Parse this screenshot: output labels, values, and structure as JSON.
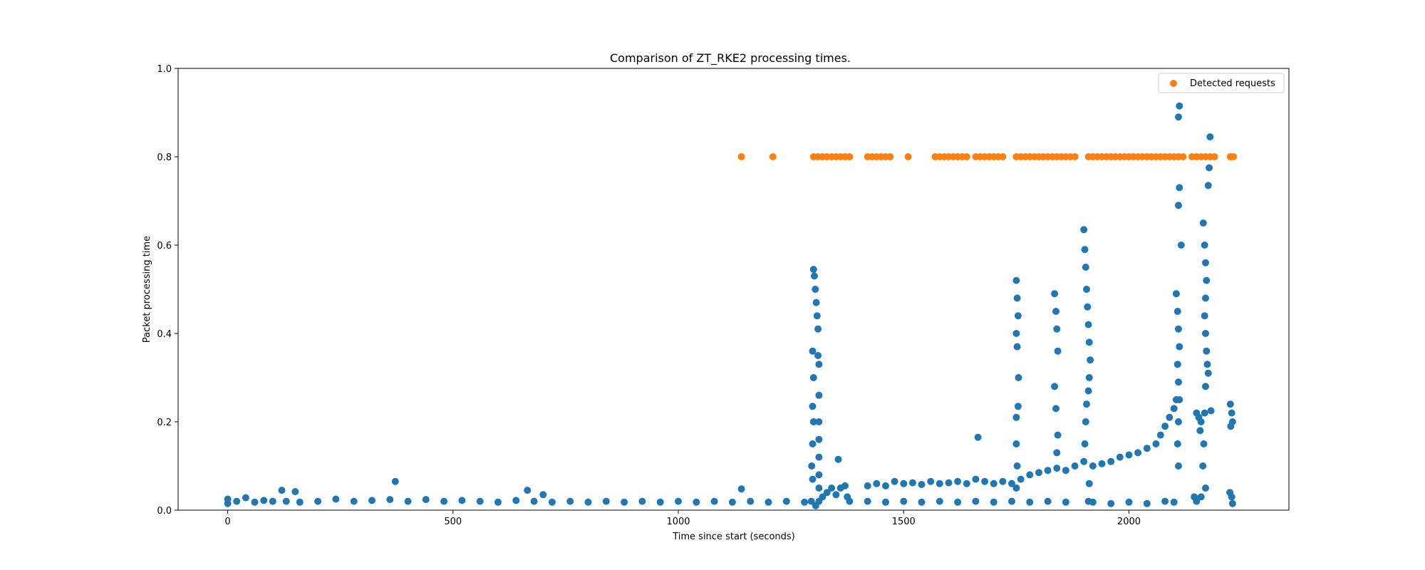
{
  "chart_data": {
    "type": "scatter",
    "title": "Comparison of ZT_RKE2 processing times.",
    "xlabel": "Time since start (seconds)",
    "ylabel": "Packet processing time",
    "xlim": [
      -110,
      2355
    ],
    "ylim": [
      0,
      1.0
    ],
    "xticks": [
      0,
      500,
      1000,
      1500,
      2000
    ],
    "yticks": [
      0.0,
      0.2,
      0.4,
      0.6,
      0.8,
      1.0
    ],
    "xtick_labels": [
      "0",
      "500",
      "1000",
      "1500",
      "2000"
    ],
    "ytick_labels": [
      "0.0",
      "0.2",
      "0.4",
      "0.6",
      "0.8",
      "1.0"
    ],
    "grid": false,
    "legend": {
      "position": "top-right",
      "entries": [
        "Detected requests"
      ]
    },
    "colors": {
      "processing": "#1f77b4",
      "detected": "#ff7f0e"
    },
    "series": [
      {
        "key": "processing",
        "points": [
          [
            0,
            0.015
          ],
          [
            0,
            0.025
          ],
          [
            20,
            0.02
          ],
          [
            40,
            0.028
          ],
          [
            60,
            0.018
          ],
          [
            80,
            0.022
          ],
          [
            100,
            0.02
          ],
          [
            120,
            0.045
          ],
          [
            130,
            0.02
          ],
          [
            150,
            0.042
          ],
          [
            160,
            0.018
          ],
          [
            200,
            0.02
          ],
          [
            240,
            0.025
          ],
          [
            280,
            0.02
          ],
          [
            320,
            0.022
          ],
          [
            360,
            0.024
          ],
          [
            372,
            0.065
          ],
          [
            400,
            0.02
          ],
          [
            440,
            0.024
          ],
          [
            480,
            0.02
          ],
          [
            520,
            0.022
          ],
          [
            560,
            0.02
          ],
          [
            600,
            0.018
          ],
          [
            640,
            0.022
          ],
          [
            665,
            0.045
          ],
          [
            680,
            0.02
          ],
          [
            700,
            0.035
          ],
          [
            720,
            0.018
          ],
          [
            760,
            0.02
          ],
          [
            800,
            0.018
          ],
          [
            840,
            0.02
          ],
          [
            880,
            0.018
          ],
          [
            920,
            0.02
          ],
          [
            960,
            0.018
          ],
          [
            1000,
            0.02
          ],
          [
            1040,
            0.018
          ],
          [
            1080,
            0.02
          ],
          [
            1120,
            0.018
          ],
          [
            1140,
            0.048
          ],
          [
            1160,
            0.02
          ],
          [
            1200,
            0.018
          ],
          [
            1240,
            0.02
          ],
          [
            1280,
            0.018
          ],
          [
            1295,
            0.02
          ],
          [
            1300,
            0.545
          ],
          [
            1302,
            0.53
          ],
          [
            1304,
            0.5
          ],
          [
            1306,
            0.47
          ],
          [
            1308,
            0.44
          ],
          [
            1310,
            0.41
          ],
          [
            1298,
            0.36
          ],
          [
            1300,
            0.3
          ],
          [
            1298,
            0.235
          ],
          [
            1300,
            0.2
          ],
          [
            1298,
            0.15
          ],
          [
            1296,
            0.1
          ],
          [
            1298,
            0.07
          ],
          [
            1310,
            0.35
          ],
          [
            1312,
            0.33
          ],
          [
            1312,
            0.26
          ],
          [
            1312,
            0.2
          ],
          [
            1312,
            0.16
          ],
          [
            1312,
            0.12
          ],
          [
            1312,
            0.08
          ],
          [
            1312,
            0.05
          ],
          [
            1312,
            0.02
          ],
          [
            1305,
            0.01
          ],
          [
            1320,
            0.03
          ],
          [
            1330,
            0.04
          ],
          [
            1340,
            0.05
          ],
          [
            1350,
            0.035
          ],
          [
            1355,
            0.115
          ],
          [
            1360,
            0.05
          ],
          [
            1370,
            0.055
          ],
          [
            1375,
            0.03
          ],
          [
            1380,
            0.02
          ],
          [
            1420,
            0.055
          ],
          [
            1440,
            0.06
          ],
          [
            1460,
            0.055
          ],
          [
            1480,
            0.065
          ],
          [
            1500,
            0.06
          ],
          [
            1520,
            0.062
          ],
          [
            1540,
            0.058
          ],
          [
            1560,
            0.065
          ],
          [
            1580,
            0.06
          ],
          [
            1600,
            0.062
          ],
          [
            1620,
            0.065
          ],
          [
            1640,
            0.06
          ],
          [
            1660,
            0.07
          ],
          [
            1665,
            0.165
          ],
          [
            1680,
            0.065
          ],
          [
            1700,
            0.06
          ],
          [
            1720,
            0.065
          ],
          [
            1740,
            0.06
          ],
          [
            1420,
            0.02
          ],
          [
            1460,
            0.018
          ],
          [
            1500,
            0.02
          ],
          [
            1540,
            0.018
          ],
          [
            1580,
            0.02
          ],
          [
            1620,
            0.018
          ],
          [
            1660,
            0.02
          ],
          [
            1700,
            0.018
          ],
          [
            1740,
            0.02
          ],
          [
            1780,
            0.018
          ],
          [
            1820,
            0.02
          ],
          [
            1860,
            0.018
          ],
          [
            1750,
            0.52
          ],
          [
            1752,
            0.48
          ],
          [
            1754,
            0.44
          ],
          [
            1750,
            0.4
          ],
          [
            1752,
            0.37
          ],
          [
            1755,
            0.3
          ],
          [
            1750,
            0.21
          ],
          [
            1754,
            0.235
          ],
          [
            1750,
            0.15
          ],
          [
            1752,
            0.1
          ],
          [
            1750,
            0.05
          ],
          [
            1760,
            0.07
          ],
          [
            1780,
            0.08
          ],
          [
            1800,
            0.085
          ],
          [
            1820,
            0.09
          ],
          [
            1840,
            0.095
          ],
          [
            1860,
            0.09
          ],
          [
            1880,
            0.1
          ],
          [
            1835,
            0.49
          ],
          [
            1838,
            0.45
          ],
          [
            1840,
            0.41
          ],
          [
            1842,
            0.36
          ],
          [
            1835,
            0.28
          ],
          [
            1838,
            0.23
          ],
          [
            1842,
            0.17
          ],
          [
            1840,
            0.13
          ],
          [
            1900,
            0.635
          ],
          [
            1902,
            0.59
          ],
          [
            1904,
            0.55
          ],
          [
            1906,
            0.5
          ],
          [
            1908,
            0.46
          ],
          [
            1910,
            0.42
          ],
          [
            1912,
            0.38
          ],
          [
            1914,
            0.34
          ],
          [
            1912,
            0.3
          ],
          [
            1910,
            0.27
          ],
          [
            1906,
            0.24
          ],
          [
            1904,
            0.2
          ],
          [
            1902,
            0.15
          ],
          [
            1900,
            0.11
          ],
          [
            1912,
            0.06
          ],
          [
            1910,
            0.02
          ],
          [
            1920,
            0.1
          ],
          [
            1940,
            0.105
          ],
          [
            1960,
            0.11
          ],
          [
            1980,
            0.12
          ],
          [
            2000,
            0.125
          ],
          [
            2020,
            0.13
          ],
          [
            2040,
            0.14
          ],
          [
            2060,
            0.15
          ],
          [
            2070,
            0.17
          ],
          [
            2080,
            0.19
          ],
          [
            2090,
            0.21
          ],
          [
            2100,
            0.23
          ],
          [
            2105,
            0.25
          ],
          [
            1920,
            0.018
          ],
          [
            1960,
            0.015
          ],
          [
            2000,
            0.018
          ],
          [
            2040,
            0.015
          ],
          [
            2080,
            0.02
          ],
          [
            2100,
            0.018
          ],
          [
            2105,
            0.49
          ],
          [
            2108,
            0.45
          ],
          [
            2110,
            0.41
          ],
          [
            2112,
            0.37
          ],
          [
            2108,
            0.33
          ],
          [
            2110,
            0.29
          ],
          [
            2112,
            0.25
          ],
          [
            2110,
            0.2
          ],
          [
            2108,
            0.15
          ],
          [
            2110,
            0.1
          ],
          [
            2112,
            0.915
          ],
          [
            2110,
            0.89
          ],
          [
            2112,
            0.73
          ],
          [
            2110,
            0.69
          ],
          [
            2116,
            0.6
          ],
          [
            2150,
            0.22
          ],
          [
            2155,
            0.21
          ],
          [
            2160,
            0.2
          ],
          [
            2158,
            0.18
          ],
          [
            2145,
            0.03
          ],
          [
            2150,
            0.02
          ],
          [
            2160,
            0.03
          ],
          [
            2165,
            0.65
          ],
          [
            2168,
            0.6
          ],
          [
            2170,
            0.56
          ],
          [
            2172,
            0.52
          ],
          [
            2170,
            0.48
          ],
          [
            2168,
            0.44
          ],
          [
            2170,
            0.4
          ],
          [
            2172,
            0.36
          ],
          [
            2174,
            0.33
          ],
          [
            2176,
            0.31
          ],
          [
            2170,
            0.28
          ],
          [
            2168,
            0.22
          ],
          [
            2166,
            0.15
          ],
          [
            2164,
            0.1
          ],
          [
            2170,
            0.05
          ],
          [
            2180,
            0.845
          ],
          [
            2178,
            0.775
          ],
          [
            2176,
            0.735
          ],
          [
            2182,
            0.225
          ],
          [
            2225,
            0.24
          ],
          [
            2228,
            0.22
          ],
          [
            2230,
            0.2
          ],
          [
            2226,
            0.19
          ],
          [
            2224,
            0.04
          ],
          [
            2228,
            0.03
          ],
          [
            2230,
            0.015
          ]
        ]
      },
      {
        "key": "detected",
        "name": "Detected requests",
        "points": [
          [
            1140,
            0.8
          ],
          [
            1210,
            0.8
          ],
          [
            1300,
            0.8
          ],
          [
            1310,
            0.8
          ],
          [
            1320,
            0.8
          ],
          [
            1330,
            0.8
          ],
          [
            1340,
            0.8
          ],
          [
            1350,
            0.8
          ],
          [
            1360,
            0.8
          ],
          [
            1370,
            0.8
          ],
          [
            1380,
            0.8
          ],
          [
            1420,
            0.8
          ],
          [
            1430,
            0.8
          ],
          [
            1440,
            0.8
          ],
          [
            1450,
            0.8
          ],
          [
            1460,
            0.8
          ],
          [
            1470,
            0.8
          ],
          [
            1510,
            0.8
          ],
          [
            1570,
            0.8
          ],
          [
            1580,
            0.8
          ],
          [
            1590,
            0.8
          ],
          [
            1600,
            0.8
          ],
          [
            1610,
            0.8
          ],
          [
            1620,
            0.8
          ],
          [
            1630,
            0.8
          ],
          [
            1640,
            0.8
          ],
          [
            1660,
            0.8
          ],
          [
            1670,
            0.8
          ],
          [
            1680,
            0.8
          ],
          [
            1690,
            0.8
          ],
          [
            1700,
            0.8
          ],
          [
            1710,
            0.8
          ],
          [
            1720,
            0.8
          ],
          [
            1750,
            0.8
          ],
          [
            1760,
            0.8
          ],
          [
            1770,
            0.8
          ],
          [
            1780,
            0.8
          ],
          [
            1790,
            0.8
          ],
          [
            1800,
            0.8
          ],
          [
            1810,
            0.8
          ],
          [
            1820,
            0.8
          ],
          [
            1830,
            0.8
          ],
          [
            1840,
            0.8
          ],
          [
            1850,
            0.8
          ],
          [
            1860,
            0.8
          ],
          [
            1870,
            0.8
          ],
          [
            1880,
            0.8
          ],
          [
            1910,
            0.8
          ],
          [
            1920,
            0.8
          ],
          [
            1930,
            0.8
          ],
          [
            1940,
            0.8
          ],
          [
            1950,
            0.8
          ],
          [
            1960,
            0.8
          ],
          [
            1970,
            0.8
          ],
          [
            1980,
            0.8
          ],
          [
            1990,
            0.8
          ],
          [
            2000,
            0.8
          ],
          [
            2010,
            0.8
          ],
          [
            2020,
            0.8
          ],
          [
            2030,
            0.8
          ],
          [
            2040,
            0.8
          ],
          [
            2050,
            0.8
          ],
          [
            2060,
            0.8
          ],
          [
            2070,
            0.8
          ],
          [
            2080,
            0.8
          ],
          [
            2090,
            0.8
          ],
          [
            2100,
            0.8
          ],
          [
            2110,
            0.8
          ],
          [
            2120,
            0.8
          ],
          [
            2140,
            0.8
          ],
          [
            2150,
            0.8
          ],
          [
            2160,
            0.8
          ],
          [
            2170,
            0.8
          ],
          [
            2180,
            0.8
          ],
          [
            2190,
            0.8
          ],
          [
            2225,
            0.8
          ],
          [
            2232,
            0.8
          ]
        ]
      }
    ]
  }
}
